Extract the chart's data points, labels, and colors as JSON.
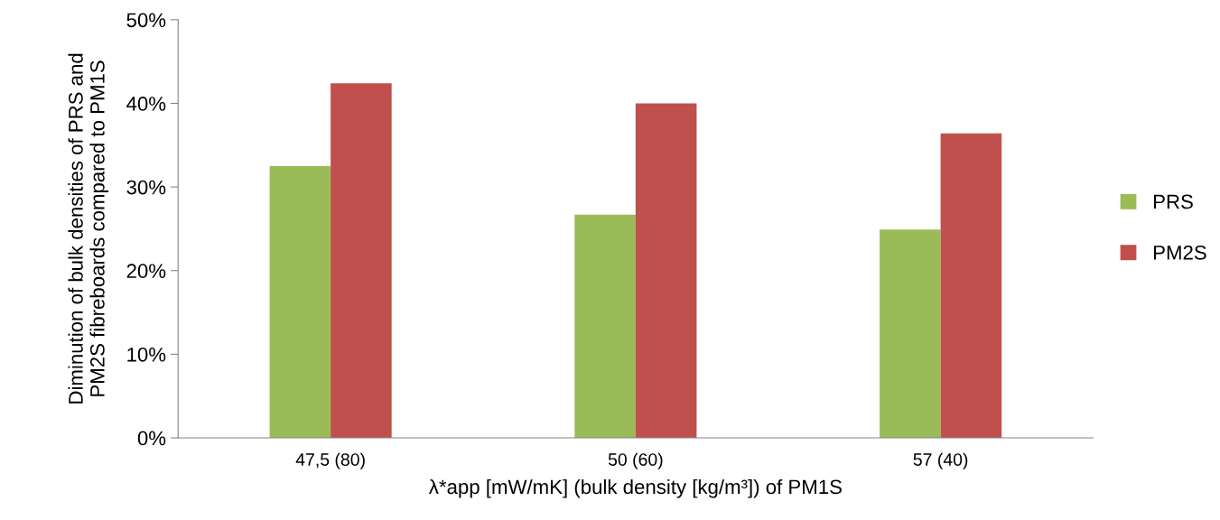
{
  "chart_data": {
    "type": "bar",
    "categories": [
      "47,5 (80)",
      "50 (60)",
      "57 (40)"
    ],
    "series": [
      {
        "name": "PRS",
        "color": "#9bbb59",
        "values": [
          32.5,
          26.7,
          24.9
        ]
      },
      {
        "name": "PM2S",
        "color": "#c0504d",
        "values": [
          42.4,
          40.0,
          36.4
        ]
      }
    ],
    "xlabel": "λ*app [mW/mK] (bulk density [kg/m³]) of PM1S",
    "ylabel": "Diminution of bulk densities of PRS and\nPM2S fibreboards compared to PM1S",
    "ylim": [
      0,
      50
    ],
    "yticks": [
      {
        "value": 0,
        "label": "0%"
      },
      {
        "value": 10,
        "label": "10%"
      },
      {
        "value": 20,
        "label": "20%"
      },
      {
        "value": 30,
        "label": "30%"
      },
      {
        "value": 40,
        "label": "40%"
      },
      {
        "value": 50,
        "label": "50%"
      }
    ],
    "grid": false,
    "legend": "right"
  }
}
